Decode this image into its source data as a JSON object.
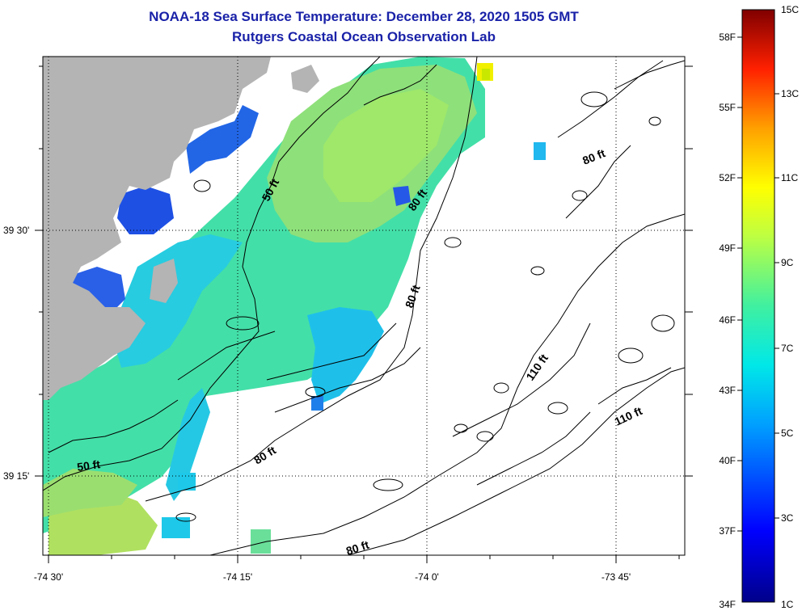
{
  "title": "NOAA-18 Sea Surface Temperature:  December 28, 2020 1505 GMT",
  "subtitle": "Rutgers Coastal Ocean Observation Lab",
  "axes": {
    "x_ticks": [
      "-74 30'",
      "-74 15'",
      "-74 0'",
      "-73 45'"
    ],
    "y_ticks": [
      "39 30'",
      "39 15'"
    ]
  },
  "contour_labels": [
    "50 ft",
    "50 ft",
    "80 ft",
    "80 ft",
    "80 ft",
    "80 ft",
    "80 ft",
    "110 ft",
    "110 ft"
  ],
  "colorbar": {
    "fahrenheit": [
      "58F",
      "55F",
      "52F",
      "49F",
      "46F",
      "43F",
      "40F",
      "37F",
      "34F"
    ],
    "celsius": [
      "15C",
      "13C",
      "11C",
      "9C",
      "7C",
      "5C",
      "3C",
      "1C"
    ]
  },
  "colors": {
    "land": "#b4b4b4",
    "title": "#1a22a8",
    "ocean_warm": "#a6e05a",
    "ocean_mid": "#3ce0b0",
    "ocean_cool": "#19b7f0",
    "ocean_cold": "#1a5ae8"
  }
}
